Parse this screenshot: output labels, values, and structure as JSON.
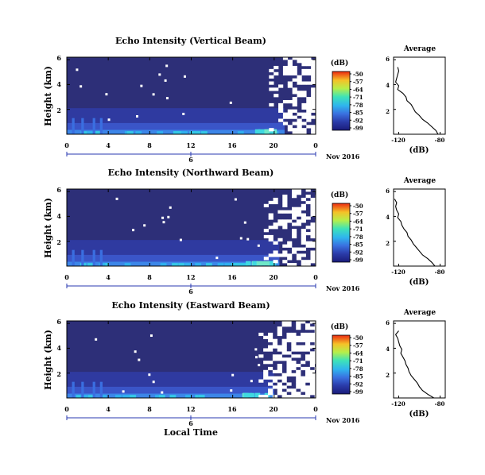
{
  "figure": {
    "xlabel_bottom": "Local Time",
    "date_label": "Nov 2016",
    "date_marker": "6"
  },
  "chart_data": [
    {
      "type": "heatmap",
      "title": "Echo Intensity (Vertical Beam)",
      "ylabel": "Height (km)",
      "xlim": [
        0,
        24
      ],
      "ylim": [
        0,
        6.2
      ],
      "xticks": [
        "0",
        "4",
        "8",
        "12",
        "16",
        "20",
        "0"
      ],
      "yticks": [
        "2",
        "4",
        "6"
      ],
      "colorbar": {
        "unit": "(dB)",
        "ticks": [
          "-50",
          "-57",
          "-64",
          "-71",
          "-78",
          "-85",
          "-92",
          "-99"
        ],
        "range": [
          -99,
          -50
        ]
      },
      "noise_start_hour": 19.5,
      "profile": {
        "title": "Average",
        "xlabel": "(dB)",
        "xticks": [
          "-120",
          "-80"
        ],
        "xlim": [
          -125,
          -75
        ],
        "ylim": [
          0,
          6.2
        ],
        "yticks": [
          "2",
          "4",
          "6"
        ],
        "heights": [
          0.0,
          0.3,
          0.6,
          0.9,
          1.2,
          1.5,
          1.8,
          2.1,
          2.4,
          2.7,
          3.0,
          3.3,
          3.6,
          3.9,
          4.2,
          4.5,
          4.8,
          5.1,
          5.4
        ],
        "values": [
          -82,
          -84,
          -88,
          -92,
          -97,
          -100,
          -104,
          -106,
          -108,
          -112,
          -113,
          -116,
          -121,
          -120,
          -123,
          -122,
          -121,
          -120,
          -121
        ]
      }
    },
    {
      "type": "heatmap",
      "title": "Echo Intensity (Northward Beam)",
      "ylabel": "Height (km)",
      "xlim": [
        0,
        24
      ],
      "ylim": [
        0,
        6.2
      ],
      "xticks": [
        "0",
        "4",
        "8",
        "12",
        "16",
        "20",
        "0"
      ],
      "yticks": [
        "2",
        "4",
        "6"
      ],
      "colorbar": {
        "unit": "(dB)",
        "ticks": [
          "-50",
          "-57",
          "-64",
          "-71",
          "-78",
          "-85",
          "-92",
          "-99"
        ],
        "range": [
          -99,
          -50
        ]
      },
      "noise_start_hour": 19.0,
      "profile": {
        "title": "Average",
        "xlabel": "(dB)",
        "xticks": [
          "-120",
          "-80"
        ],
        "xlim": [
          -125,
          -75
        ],
        "ylim": [
          0,
          6.2
        ],
        "yticks": [
          "2",
          "4",
          "6"
        ],
        "heights": [
          0.0,
          0.3,
          0.6,
          0.9,
          1.2,
          1.5,
          1.8,
          2.1,
          2.4,
          2.7,
          3.0,
          3.3,
          3.6,
          3.9,
          4.2,
          4.5,
          4.8,
          5.1,
          5.4
        ],
        "values": [
          -85,
          -88,
          -92,
          -97,
          -100,
          -103,
          -106,
          -108,
          -111,
          -112,
          -115,
          -117,
          -118,
          -121,
          -120,
          -122,
          -123,
          -122,
          -124
        ]
      }
    },
    {
      "type": "heatmap",
      "title": "Echo Intensity (Eastward Beam)",
      "ylabel": "Height (km)",
      "xlim": [
        0,
        24
      ],
      "ylim": [
        0,
        6.2
      ],
      "xticks": [
        "0",
        "4",
        "8",
        "12",
        "16",
        "20",
        "0"
      ],
      "yticks": [
        "2",
        "4",
        "6"
      ],
      "colorbar": {
        "unit": "(dB)",
        "ticks": [
          "-50",
          "-57",
          "-64",
          "-71",
          "-78",
          "-85",
          "-92",
          "-99"
        ],
        "range": [
          -99,
          -50
        ]
      },
      "noise_start_hour": 18.5,
      "profile": {
        "title": "Average",
        "xlabel": "(dB)",
        "xticks": [
          "-120",
          "-80"
        ],
        "xlim": [
          -125,
          -75
        ],
        "ylim": [
          0,
          6.2
        ],
        "yticks": [
          "2",
          "4",
          "6"
        ],
        "heights": [
          0.0,
          0.3,
          0.6,
          0.9,
          1.2,
          1.5,
          1.8,
          2.1,
          2.4,
          2.7,
          3.0,
          3.3,
          3.6,
          3.9,
          4.2,
          4.5,
          4.8,
          5.1,
          5.4
        ],
        "values": [
          -86,
          -92,
          -97,
          -100,
          -102,
          -105,
          -108,
          -110,
          -111,
          -113,
          -114,
          -116,
          -118,
          -117,
          -119,
          -120,
          -121,
          -123,
          -120
        ]
      }
    }
  ]
}
